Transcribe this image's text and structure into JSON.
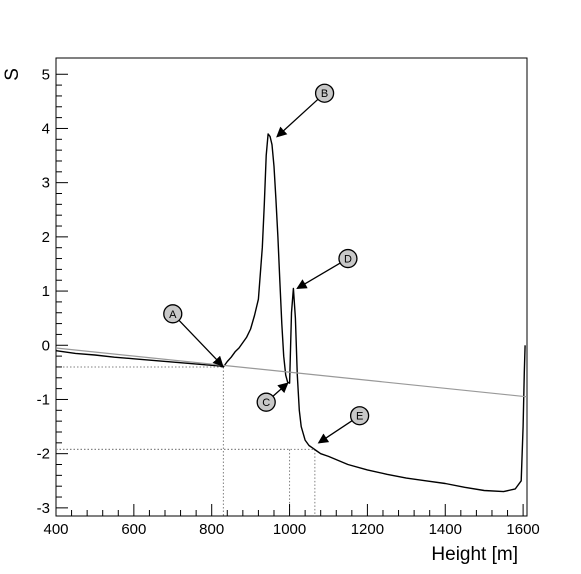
{
  "chart_data": {
    "type": "line",
    "title": "",
    "xlabel": "Height [m]",
    "ylabel": "S",
    "xlim": [
      400,
      1610
    ],
    "ylim": [
      -3.15,
      5.3
    ],
    "xticks": [
      "400",
      "600",
      "800",
      "1000",
      "1200",
      "1400",
      "1600"
    ],
    "yticks": [
      "-3",
      "-2",
      "-1",
      "0",
      "1",
      "2",
      "3",
      "4",
      "5"
    ],
    "grid": false,
    "legend": "none",
    "series": [
      {
        "color": "#000000",
        "x": [
          400,
          450,
          500,
          550,
          600,
          650,
          700,
          750,
          800,
          820,
          830,
          840,
          850,
          860,
          870,
          880,
          890,
          900,
          910,
          920,
          930,
          935,
          940,
          945,
          950,
          955,
          960,
          965,
          970,
          975,
          980,
          985,
          990,
          995,
          1000,
          1005,
          1010,
          1015,
          1020,
          1025,
          1030,
          1040,
          1050,
          1060,
          1070,
          1080,
          1100,
          1150,
          1200,
          1250,
          1300,
          1350,
          1400,
          1450,
          1500,
          1550,
          1580,
          1595,
          1600,
          1603,
          1605
        ],
        "y": [
          -0.1,
          -0.15,
          -0.18,
          -0.22,
          -0.25,
          -0.28,
          -0.31,
          -0.34,
          -0.37,
          -0.38,
          -0.4,
          -0.3,
          -0.22,
          -0.12,
          -0.05,
          0.05,
          0.15,
          0.3,
          0.55,
          0.85,
          1.8,
          2.6,
          3.5,
          3.9,
          3.85,
          3.7,
          3.3,
          2.7,
          2.0,
          1.2,
          0.4,
          -0.2,
          -0.55,
          -0.68,
          -0.7,
          0.6,
          1.05,
          0.5,
          -0.55,
          -1.2,
          -1.5,
          -1.75,
          -1.85,
          -1.9,
          -1.95,
          -2.0,
          -2.05,
          -2.2,
          -2.3,
          -2.38,
          -2.45,
          -2.5,
          -2.55,
          -2.62,
          -2.68,
          -2.7,
          -2.65,
          -2.5,
          -1.5,
          -0.5,
          0.0
        ]
      },
      {
        "color": "#999999",
        "x": [
          400,
          1610
        ],
        "y": [
          -0.05,
          -0.95
        ]
      }
    ],
    "guides": [
      {
        "x": 830,
        "y": -0.4
      },
      {
        "x": 1000,
        "y": -1.92
      },
      {
        "x": 1065,
        "y": -1.92
      }
    ],
    "annotations": [
      {
        "label": "A",
        "x": 700,
        "y": 0.58,
        "target_x": 828,
        "target_y": -0.38
      },
      {
        "label": "B",
        "x": 1090,
        "y": 4.65,
        "target_x": 968,
        "target_y": 3.85
      },
      {
        "label": "C",
        "x": 940,
        "y": -1.05,
        "target_x": 995,
        "target_y": -0.7
      },
      {
        "label": "D",
        "x": 1150,
        "y": 1.6,
        "target_x": 1020,
        "target_y": 1.05
      },
      {
        "label": "E",
        "x": 1180,
        "y": -1.3,
        "target_x": 1075,
        "target_y": -1.8
      }
    ]
  }
}
